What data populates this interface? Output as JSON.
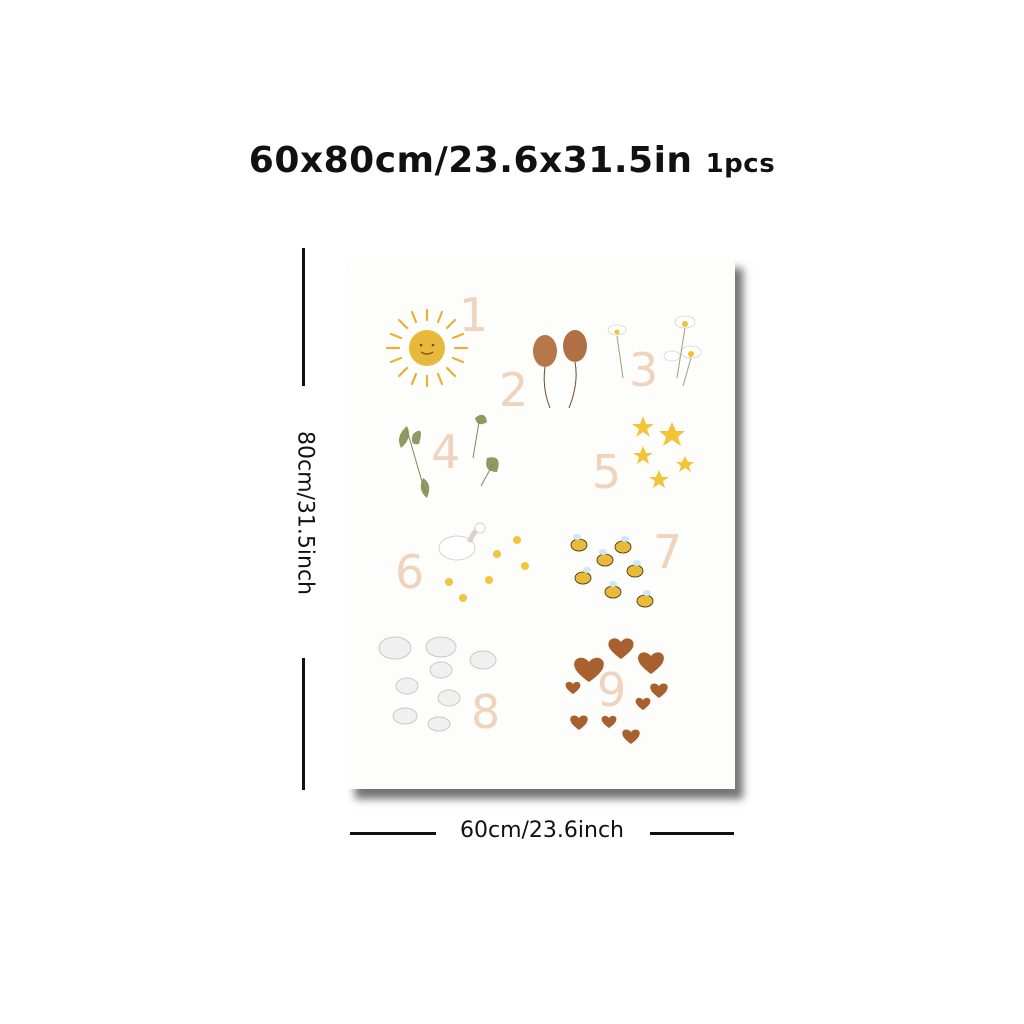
{
  "title": {
    "size_text": "60x80cm/23.6x31.5in",
    "qty_text": "1pcs"
  },
  "dimensions": {
    "height_label": "80cm/31.5inch",
    "width_label": "60cm/23.6inch"
  },
  "poster": {
    "numbers": [
      "1",
      "2",
      "3",
      "4",
      "5",
      "6",
      "7",
      "8",
      "9"
    ],
    "items": [
      {
        "number": "1",
        "icon": "sun-icon"
      },
      {
        "number": "2",
        "icon": "balloon-icon"
      },
      {
        "number": "3",
        "icon": "daisy-icon"
      },
      {
        "number": "4",
        "icon": "leaf-icon"
      },
      {
        "number": "5",
        "icon": "star-icon"
      },
      {
        "number": "6",
        "icon": "goose-and-chicks-icon"
      },
      {
        "number": "7",
        "icon": "bee-icon"
      },
      {
        "number": "8",
        "icon": "cloud-icon"
      },
      {
        "number": "9",
        "icon": "heart-icon"
      }
    ],
    "colors": {
      "number": "#efd3bd",
      "sun": "#e8b83a",
      "balloon": "#b8774a",
      "star": "#f1c43a",
      "leaf": "#8e9a61",
      "heart": "#a8602e",
      "cloud": "#eeeeee"
    }
  }
}
